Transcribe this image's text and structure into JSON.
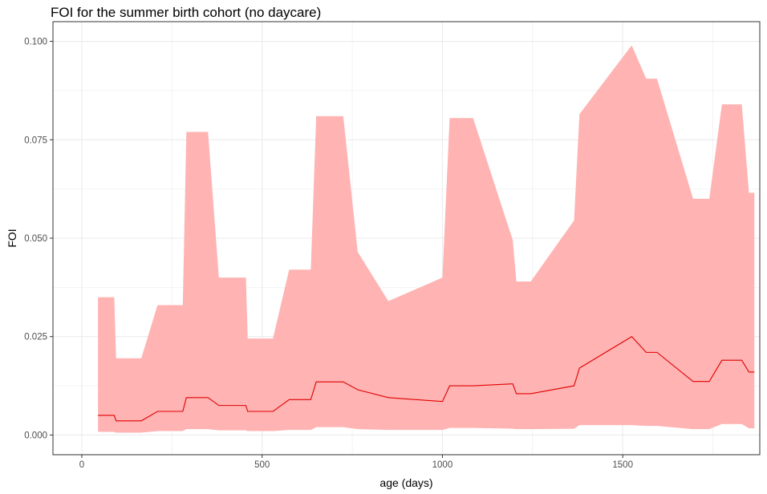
{
  "chart_data": {
    "type": "area",
    "title": "FOI for the summer birth cohort (no daycare)",
    "xlabel": "age (days)",
    "ylabel": "FOI",
    "xlim": [
      -80,
      1880
    ],
    "ylim": [
      -0.005,
      0.105
    ],
    "x_ticks": [
      0,
      500,
      1000,
      1500
    ],
    "x_tick_labels": [
      "0",
      "500",
      "1000",
      "1500"
    ],
    "y_ticks": [
      0.0,
      0.025,
      0.05,
      0.075,
      0.1
    ],
    "y_tick_labels": [
      "0.000",
      "0.025",
      "0.050",
      "0.075",
      "0.100"
    ],
    "grid": true,
    "colors": {
      "line": "#e00000",
      "band": "#ffb3b3",
      "grid": "#ebebeb",
      "border": "#333333"
    },
    "series": [
      {
        "x": [
          45,
          90,
          95,
          165,
          210,
          280,
          290,
          350,
          380,
          455,
          460,
          530,
          575,
          635,
          650,
          725,
          765,
          850,
          1000,
          1020,
          1085,
          1195,
          1205,
          1245,
          1365,
          1380,
          1525,
          1565,
          1595,
          1695,
          1740,
          1775,
          1830,
          1850,
          1865
        ],
        "y": [
          0.005,
          0.005,
          0.0036,
          0.0036,
          0.006,
          0.006,
          0.0095,
          0.0095,
          0.0075,
          0.0075,
          0.006,
          0.006,
          0.009,
          0.009,
          0.0135,
          0.0135,
          0.0115,
          0.0095,
          0.0085,
          0.0125,
          0.0125,
          0.013,
          0.0105,
          0.0105,
          0.0125,
          0.017,
          0.025,
          0.021,
          0.021,
          0.0136,
          0.0136,
          0.019,
          0.019,
          0.016,
          0.016
        ],
        "lower": [
          0.0008,
          0.0008,
          0.0006,
          0.0006,
          0.001,
          0.001,
          0.0015,
          0.0015,
          0.0012,
          0.0012,
          0.001,
          0.001,
          0.0013,
          0.0013,
          0.002,
          0.002,
          0.0015,
          0.0013,
          0.0013,
          0.0018,
          0.0018,
          0.0016,
          0.0015,
          0.0015,
          0.0016,
          0.0025,
          0.0025,
          0.0023,
          0.0023,
          0.0015,
          0.0015,
          0.0028,
          0.0028,
          0.0017,
          0.0017
        ],
        "upper": [
          0.035,
          0.035,
          0.0195,
          0.0195,
          0.033,
          0.033,
          0.077,
          0.077,
          0.04,
          0.04,
          0.0245,
          0.0245,
          0.042,
          0.042,
          0.081,
          0.081,
          0.0465,
          0.034,
          0.04,
          0.0805,
          0.0805,
          0.0495,
          0.039,
          0.039,
          0.0545,
          0.0815,
          0.099,
          0.0905,
          0.0905,
          0.06,
          0.06,
          0.084,
          0.084,
          0.0615,
          0.0615
        ]
      }
    ]
  }
}
